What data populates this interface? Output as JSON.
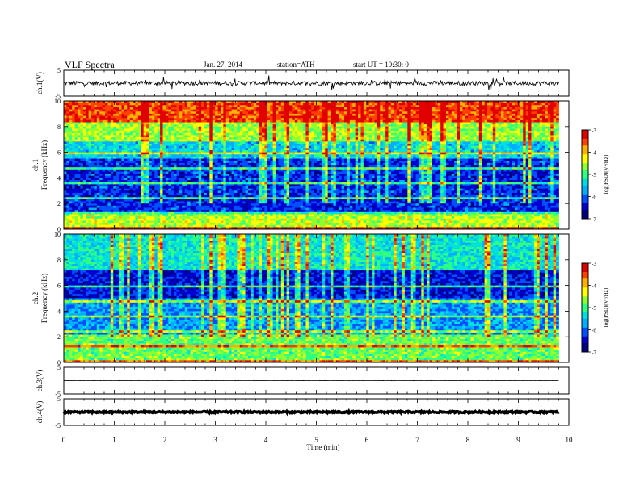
{
  "header": {
    "title": "VLF  Spectra",
    "date": "Jan. 27, 2014",
    "station": "station=ATH",
    "start_ut": "start  UT  =   10:30: 0"
  },
  "colors": {
    "scale": [
      "#000080",
      "#0000d0",
      "#0050ff",
      "#00b0ff",
      "#00e0e0",
      "#30ff80",
      "#90ff30",
      "#ffff00",
      "#ffb000",
      "#ff4000",
      "#e00000",
      "#ffffff"
    ]
  },
  "chart_data": [
    {
      "type": "line",
      "channel": "ch.1",
      "ylabel": "ch.1(V)",
      "ylim": [
        -5,
        5
      ],
      "yticks": [
        "5",
        "-5"
      ],
      "baseline": 0,
      "noise_amplitude": 0.8
    },
    {
      "type": "heatmap",
      "channel": "ch.1",
      "ylabel_top": "ch.1",
      "ylabel": "Frequency  (kHz)",
      "ylim": [
        0,
        10
      ],
      "yticks": [
        "0",
        "2",
        "4",
        "6",
        "8",
        "10"
      ],
      "colorbar": {
        "label": "log(PSD)(V²/Hz)",
        "ticks": [
          "-3",
          "-4",
          "-5",
          "-6",
          "-7"
        ],
        "range": [
          -7,
          -3
        ]
      },
      "bands_khz": [
        {
          "from": 0,
          "to": 1.2,
          "level": -4.5
        },
        {
          "from": 1.2,
          "to": 5.5,
          "level": -6.3
        },
        {
          "from": 5.5,
          "to": 6.8,
          "level": -5.5
        },
        {
          "from": 6.8,
          "to": 8.3,
          "level": -4.6
        },
        {
          "from": 8.3,
          "to": 10,
          "level": -3.5
        }
      ]
    },
    {
      "type": "heatmap",
      "channel": "ch.2",
      "ylabel_top": "ch.2",
      "ylabel": "Frequency  (kHz)",
      "ylim": [
        0,
        10
      ],
      "yticks": [
        "0",
        "2",
        "4",
        "6",
        "8",
        "10"
      ],
      "colorbar": {
        "label": "log(PSD)(V²/Hz)",
        "ticks": [
          "-3",
          "-4",
          "-5",
          "-6",
          "-7"
        ],
        "range": [
          -7,
          -3
        ]
      },
      "bands_khz": [
        {
          "from": 0,
          "to": 2.2,
          "level": -4.8
        },
        {
          "from": 2.2,
          "to": 5.0,
          "level": -5.8
        },
        {
          "from": 5.0,
          "to": 7.2,
          "level": -6.4
        },
        {
          "from": 7.2,
          "to": 10,
          "level": -5.3
        }
      ]
    },
    {
      "type": "line",
      "channel": "ch.3",
      "ylabel": "ch.3(V)",
      "ylim": [
        -5,
        5
      ],
      "yticks": [
        "5",
        "-5"
      ],
      "baseline": 0,
      "noise_amplitude": 0.05
    },
    {
      "type": "line",
      "channel": "ch.4",
      "ylabel": "ch.4(V)",
      "ylim": [
        -5,
        5
      ],
      "yticks": [
        "5",
        "-5"
      ],
      "baseline": 0,
      "noise_amplitude": 0.3
    }
  ],
  "xaxis": {
    "label": "Time  (min)",
    "ticks": [
      "0",
      "1",
      "2",
      "3",
      "4",
      "5",
      "6",
      "7",
      "8",
      "9",
      "10"
    ],
    "xlim": [
      0,
      10
    ],
    "data_end": 9.8
  }
}
